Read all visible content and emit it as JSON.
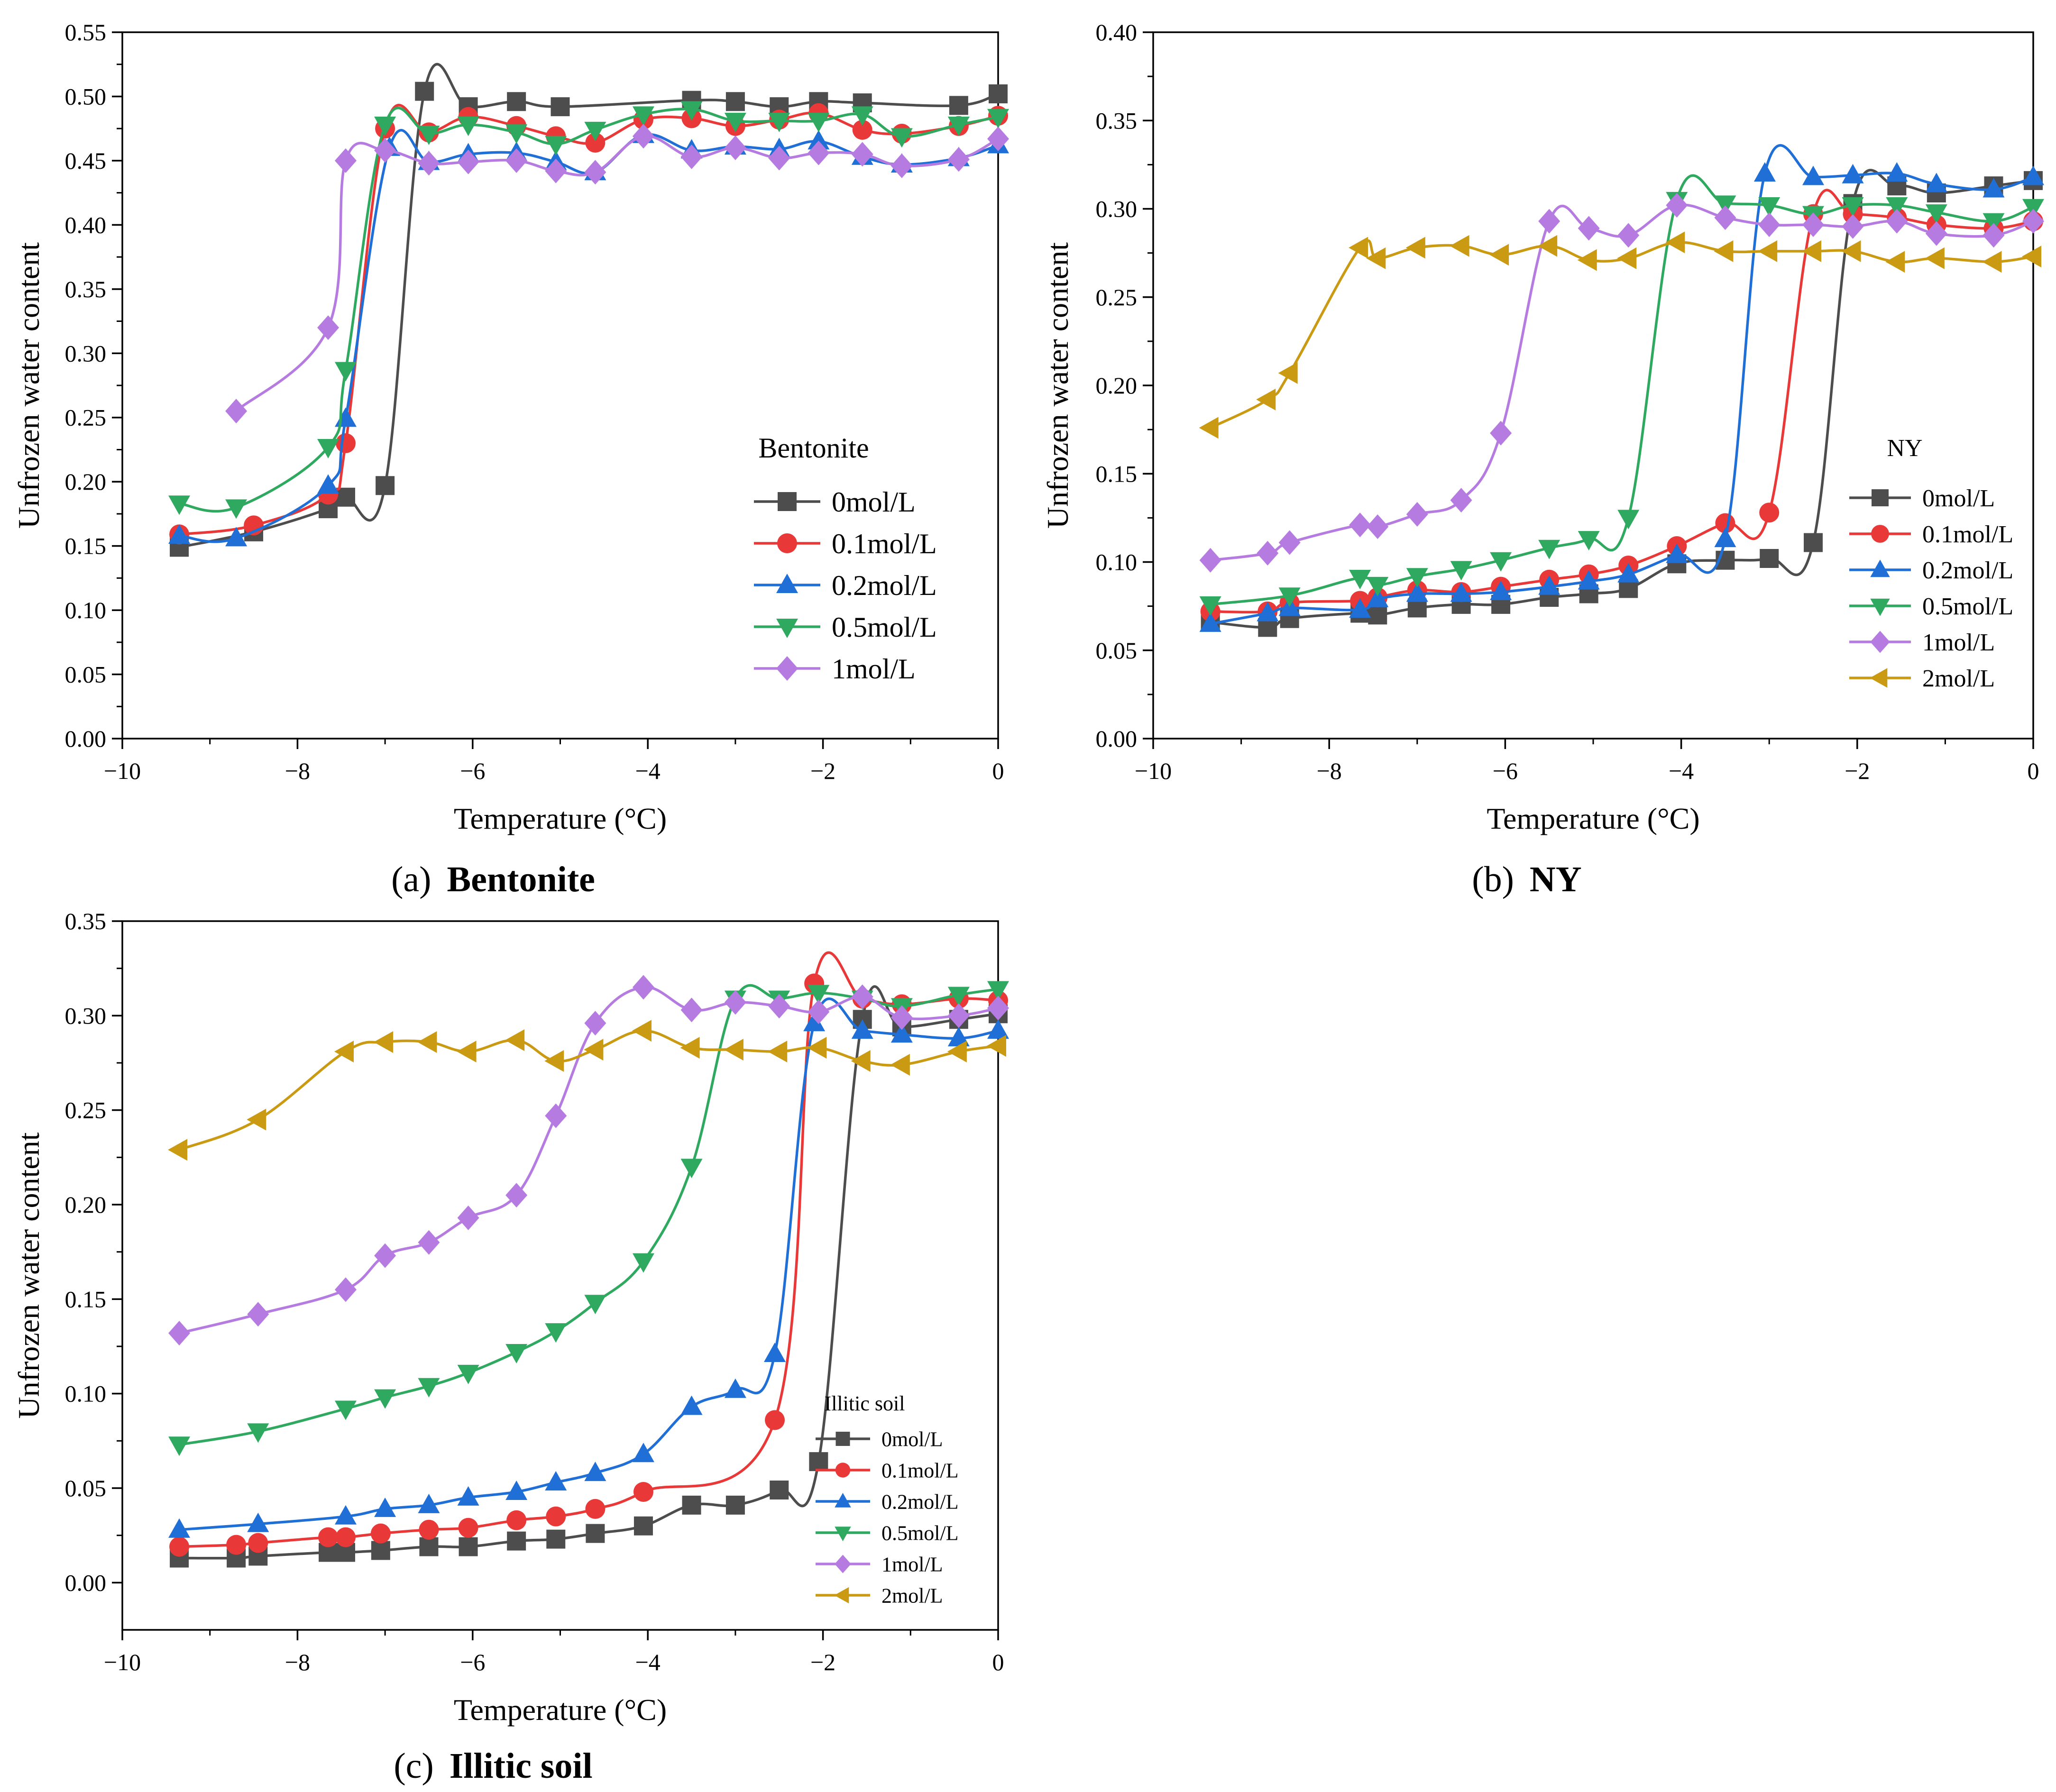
{
  "figure": {
    "captions": [
      {
        "letter": "(a)",
        "name": "Bentonite"
      },
      {
        "letter": "(b)",
        "name": "NY"
      },
      {
        "letter": "(c)",
        "name": "Illitic soil"
      }
    ]
  },
  "colors": {
    "0mol/L": "#4d4d4d",
    "0.1mol/L": "#e83838",
    "0.2mol/L": "#1f6fd6",
    "0.5mol/L": "#2fa860",
    "1mol/L": "#b57be0",
    "2mol/L": "#c99a12"
  },
  "markers": {
    "0mol/L": "square",
    "0.1mol/L": "circle",
    "0.2mol/L": "triangle-up",
    "0.5mol/L": "triangle-down",
    "1mol/L": "diamond",
    "2mol/L": "triangle-left"
  },
  "chart_data": [
    {
      "type": "line",
      "title": "(a) Bentonite",
      "xlabel": "Temperature (°C)",
      "ylabel": "Unfrozen water content",
      "xlim": [
        -10,
        0
      ],
      "ylim": [
        0,
        0.55
      ],
      "xticks": [
        "−10",
        "−8",
        "−6",
        "−4",
        "−2",
        "0"
      ],
      "yticks": [
        "0.00",
        "0.05",
        "0.10",
        "0.15",
        "0.20",
        "0.25",
        "0.30",
        "0.35",
        "0.40",
        "0.45",
        "0.50",
        "0.55"
      ],
      "legend_title": "Bentonite",
      "legend_position": "right",
      "series": [
        {
          "name": "0mol/L",
          "x": [
            -9.35,
            -8.5,
            -7.65,
            -7.45,
            -7.0,
            -6.55,
            -6.05,
            -5.5,
            -5.0,
            -3.5,
            -3.0,
            -2.5,
            -2.05,
            -1.55,
            -0.45,
            0
          ],
          "y": [
            0.149,
            0.161,
            0.179,
            0.188,
            0.197,
            0.504,
            0.492,
            0.496,
            0.492,
            0.497,
            0.496,
            0.492,
            0.496,
            0.495,
            0.493,
            0.502
          ]
        },
        {
          "name": "0.1mol/L",
          "x": [
            -9.35,
            -8.5,
            -7.65,
            -7.45,
            -7.0,
            -6.5,
            -6.05,
            -5.5,
            -5.05,
            -4.6,
            -4.05,
            -3.5,
            -3.0,
            -2.5,
            -2.05,
            -1.55,
            -1.1,
            -0.45,
            0
          ],
          "y": [
            0.159,
            0.166,
            0.19,
            0.23,
            0.475,
            0.472,
            0.484,
            0.477,
            0.469,
            0.464,
            0.482,
            0.483,
            0.477,
            0.482,
            0.487,
            0.474,
            0.471,
            0.477,
            0.485
          ]
        },
        {
          "name": "0.2mol/L",
          "x": [
            -9.35,
            -8.7,
            -7.65,
            -7.45,
            -6.95,
            -6.5,
            -6.05,
            -5.5,
            -5.05,
            -4.6,
            -4.05,
            -3.5,
            -3.0,
            -2.5,
            -2.05,
            -1.55,
            -1.1,
            -0.45,
            0
          ],
          "y": [
            0.158,
            0.156,
            0.197,
            0.249,
            0.46,
            0.449,
            0.455,
            0.456,
            0.449,
            0.441,
            0.47,
            0.458,
            0.461,
            0.459,
            0.465,
            0.453,
            0.447,
            0.452,
            0.462
          ]
        },
        {
          "name": "0.5mol/L",
          "x": [
            -9.35,
            -8.7,
            -7.65,
            -7.45,
            -7.0,
            -6.5,
            -6.05,
            -5.5,
            -5.05,
            -4.6,
            -4.05,
            -3.5,
            -3.0,
            -2.5,
            -2.05,
            -1.55,
            -1.1,
            -0.45,
            0
          ],
          "y": [
            0.183,
            0.18,
            0.227,
            0.287,
            0.478,
            0.471,
            0.478,
            0.472,
            0.463,
            0.474,
            0.486,
            0.49,
            0.481,
            0.481,
            0.481,
            0.486,
            0.469,
            0.478,
            0.484
          ]
        },
        {
          "name": "1mol/L",
          "x": [
            -8.7,
            -7.65,
            -7.45,
            -7.0,
            -6.5,
            -6.05,
            -5.5,
            -5.05,
            -4.6,
            -4.05,
            -3.5,
            -3.0,
            -2.5,
            -2.05,
            -1.55,
            -1.1,
            -0.45,
            0
          ],
          "y": [
            0.255,
            0.32,
            0.45,
            0.458,
            0.448,
            0.449,
            0.45,
            0.442,
            0.441,
            0.469,
            0.453,
            0.46,
            0.452,
            0.456,
            0.455,
            0.446,
            0.451,
            0.467
          ]
        }
      ]
    },
    {
      "type": "line",
      "title": "(b) NY",
      "xlabel": "Temperature (°C)",
      "ylabel": "Unfrozen water content",
      "xlim": [
        -10,
        0
      ],
      "ylim": [
        0,
        0.4
      ],
      "xticks": [
        "−10",
        "−8",
        "−6",
        "−4",
        "−2",
        "0"
      ],
      "yticks": [
        "0.00",
        "0.05",
        "0.10",
        "0.15",
        "0.20",
        "0.25",
        "0.30",
        "0.35",
        "0.40"
      ],
      "legend_title": "NY",
      "legend_position": "bottom-right",
      "series": [
        {
          "name": "0mol/L",
          "x": [
            -9.35,
            -8.7,
            -8.45,
            -7.65,
            -7.45,
            -7.0,
            -6.5,
            -6.05,
            -5.5,
            -5.05,
            -4.6,
            -4.05,
            -3.5,
            -3.0,
            -2.5,
            -2.05,
            -1.55,
            -1.1,
            -0.45,
            0
          ],
          "y": [
            0.066,
            0.063,
            0.068,
            0.071,
            0.07,
            0.074,
            0.076,
            0.076,
            0.08,
            0.082,
            0.085,
            0.099,
            0.101,
            0.102,
            0.111,
            0.303,
            0.313,
            0.309,
            0.313,
            0.316
          ]
        },
        {
          "name": "0.1mol/L",
          "x": [
            -9.35,
            -8.7,
            -8.45,
            -7.65,
            -7.45,
            -7.0,
            -6.5,
            -6.05,
            -5.5,
            -5.05,
            -4.6,
            -4.05,
            -3.5,
            -3.0,
            -2.5,
            -2.05,
            -1.55,
            -1.1,
            -0.45,
            0
          ],
          "y": [
            0.072,
            0.072,
            0.077,
            0.078,
            0.08,
            0.084,
            0.083,
            0.086,
            0.09,
            0.093,
            0.098,
            0.109,
            0.122,
            0.128,
            0.297,
            0.297,
            0.295,
            0.291,
            0.289,
            0.293
          ]
        },
        {
          "name": "0.2mol/L",
          "x": [
            -9.35,
            -8.7,
            -8.45,
            -7.65,
            -7.45,
            -7.0,
            -6.5,
            -6.05,
            -5.5,
            -5.05,
            -4.6,
            -4.05,
            -3.5,
            -3.05,
            -2.5,
            -2.05,
            -1.55,
            -1.1,
            -0.45,
            0
          ],
          "y": [
            0.065,
            0.071,
            0.074,
            0.073,
            0.079,
            0.082,
            0.082,
            0.083,
            0.086,
            0.089,
            0.093,
            0.104,
            0.113,
            0.32,
            0.318,
            0.319,
            0.32,
            0.314,
            0.311,
            0.318
          ]
        },
        {
          "name": "0.5mol/L",
          "x": [
            -9.35,
            -8.45,
            -7.65,
            -7.45,
            -7.0,
            -6.5,
            -6.05,
            -5.5,
            -5.05,
            -4.6,
            -4.05,
            -3.5,
            -3.0,
            -2.5,
            -2.05,
            -1.55,
            -1.1,
            -0.45,
            0
          ],
          "y": [
            0.076,
            0.081,
            0.091,
            0.087,
            0.092,
            0.096,
            0.101,
            0.108,
            0.113,
            0.125,
            0.305,
            0.303,
            0.302,
            0.297,
            0.302,
            0.302,
            0.298,
            0.293,
            0.301
          ]
        },
        {
          "name": "1mol/L",
          "x": [
            -9.35,
            -8.7,
            -8.45,
            -7.65,
            -7.45,
            -7.0,
            -6.5,
            -6.05,
            -5.5,
            -5.05,
            -4.6,
            -4.05,
            -3.5,
            -3.0,
            -2.5,
            -2.05,
            -1.55,
            -1.1,
            -0.45,
            0
          ],
          "y": [
            0.101,
            0.105,
            0.111,
            0.121,
            0.12,
            0.127,
            0.135,
            0.173,
            0.293,
            0.289,
            0.285,
            0.302,
            0.295,
            0.291,
            0.291,
            0.29,
            0.293,
            0.286,
            0.285,
            0.293
          ]
        },
        {
          "name": "2mol/L",
          "x": [
            -9.35,
            -8.7,
            -8.45,
            -7.65,
            -7.45,
            -7.0,
            -6.5,
            -6.05,
            -5.5,
            -5.05,
            -4.6,
            -4.05,
            -3.5,
            -3.0,
            -2.5,
            -2.05,
            -1.55,
            -1.1,
            -0.45,
            0
          ],
          "y": [
            0.176,
            0.192,
            0.207,
            0.278,
            0.272,
            0.278,
            0.279,
            0.274,
            0.279,
            0.271,
            0.272,
            0.281,
            0.276,
            0.276,
            0.276,
            0.276,
            0.27,
            0.272,
            0.27,
            0.273
          ]
        }
      ]
    },
    {
      "type": "line",
      "title": "(c) Illitic soil",
      "xlabel": "Temperature (°C)",
      "ylabel": "Unfrozen water content",
      "xlim": [
        -10,
        0
      ],
      "ylim": [
        -0.025,
        0.35
      ],
      "xticks": [
        "−10",
        "−8",
        "−6",
        "−4",
        "−2",
        "0"
      ],
      "yticks": [
        "0.00",
        "0.05",
        "0.10",
        "0.15",
        "0.20",
        "0.25",
        "0.30",
        "0.35"
      ],
      "legend_title": "Illitic soil",
      "legend_position": "bottom-right",
      "series": [
        {
          "name": "0mol/L",
          "x": [
            -9.35,
            -8.7,
            -8.45,
            -7.65,
            -7.45,
            -7.05,
            -6.5,
            -6.05,
            -5.5,
            -5.05,
            -4.6,
            -4.05,
            -3.5,
            -3.0,
            -2.5,
            -2.05,
            -1.55,
            -1.1,
            -0.45,
            0
          ],
          "y": [
            0.013,
            0.013,
            0.014,
            0.016,
            0.016,
            0.017,
            0.019,
            0.019,
            0.022,
            0.023,
            0.026,
            0.03,
            0.041,
            0.041,
            0.049,
            0.064,
            0.298,
            0.294,
            0.298,
            0.301
          ]
        },
        {
          "name": "0.1mol/L",
          "x": [
            -9.35,
            -8.7,
            -8.45,
            -7.65,
            -7.45,
            -7.05,
            -6.5,
            -6.05,
            -5.5,
            -5.05,
            -4.6,
            -4.05,
            -2.55,
            -2.1,
            -1.55,
            -1.1,
            -0.45,
            0
          ],
          "y": [
            0.019,
            0.02,
            0.021,
            0.024,
            0.024,
            0.026,
            0.028,
            0.029,
            0.033,
            0.035,
            0.039,
            0.048,
            0.086,
            0.317,
            0.309,
            0.306,
            0.309,
            0.308
          ]
        },
        {
          "name": "0.2mol/L",
          "x": [
            -9.35,
            -8.45,
            -7.45,
            -7.0,
            -6.5,
            -6.05,
            -5.5,
            -5.05,
            -4.6,
            -4.05,
            -3.5,
            -3.0,
            -2.55,
            -2.1,
            -1.55,
            -1.1,
            -0.45,
            0
          ],
          "y": [
            0.028,
            0.031,
            0.035,
            0.039,
            0.041,
            0.045,
            0.048,
            0.053,
            0.058,
            0.068,
            0.093,
            0.102,
            0.121,
            0.296,
            0.292,
            0.29,
            0.288,
            0.292
          ]
        },
        {
          "name": "0.5mol/L",
          "x": [
            -9.35,
            -8.45,
            -7.45,
            -7.0,
            -6.5,
            -6.05,
            -5.5,
            -5.05,
            -4.6,
            -4.05,
            -3.5,
            -3.0,
            -2.5,
            -2.05,
            -1.55,
            -1.1,
            -0.45,
            0
          ],
          "y": [
            0.073,
            0.08,
            0.092,
            0.098,
            0.104,
            0.111,
            0.122,
            0.133,
            0.148,
            0.17,
            0.22,
            0.309,
            0.309,
            0.312,
            0.309,
            0.305,
            0.311,
            0.314
          ]
        },
        {
          "name": "1mol/L",
          "x": [
            -9.35,
            -8.45,
            -7.45,
            -7.0,
            -6.5,
            -6.05,
            -5.5,
            -5.05,
            -4.6,
            -4.05,
            -3.5,
            -3.0,
            -2.5,
            -2.05,
            -1.55,
            -1.1,
            -0.45,
            0
          ],
          "y": [
            0.132,
            0.142,
            0.155,
            0.173,
            0.18,
            0.193,
            0.205,
            0.247,
            0.296,
            0.315,
            0.303,
            0.307,
            0.305,
            0.302,
            0.31,
            0.299,
            0.3,
            0.304
          ]
        },
        {
          "name": "2mol/L",
          "x": [
            -9.35,
            -8.45,
            -7.45,
            -7.0,
            -6.5,
            -6.05,
            -5.5,
            -5.05,
            -4.6,
            -4.05,
            -3.5,
            -3.0,
            -2.5,
            -2.05,
            -1.55,
            -1.1,
            -0.45,
            0
          ],
          "y": [
            0.229,
            0.245,
            0.281,
            0.286,
            0.286,
            0.281,
            0.287,
            0.276,
            0.282,
            0.292,
            0.283,
            0.282,
            0.281,
            0.283,
            0.276,
            0.274,
            0.281,
            0.284
          ]
        }
      ]
    }
  ]
}
